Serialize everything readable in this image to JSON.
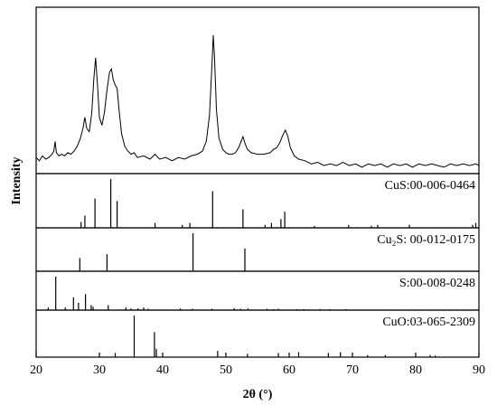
{
  "chart_data": [
    {
      "type": "line",
      "ylabel": "Intensity",
      "xlim": [
        20,
        90
      ],
      "ylim": [
        0,
        100
      ],
      "color": "#000000",
      "x": [
        20,
        20.5,
        21,
        21.5,
        22,
        22.5,
        22.8,
        23.0,
        23.2,
        23.6,
        24,
        24.5,
        25,
        25.5,
        26,
        26.5,
        27,
        27.4,
        27.7,
        28.0,
        28.4,
        28.8,
        29.1,
        29.4,
        29.7,
        30.0,
        30.4,
        30.8,
        31.2,
        31.6,
        31.9,
        32.2,
        32.5,
        32.8,
        33.1,
        33.5,
        34,
        34.5,
        35,
        35.5,
        36,
        37,
        38,
        38.8,
        39.5,
        40.5,
        41.5,
        42.5,
        43.5,
        44.5,
        45.5,
        46.3,
        46.9,
        47.4,
        47.8,
        48.0,
        48.2,
        48.5,
        48.9,
        49.5,
        50,
        50.5,
        51,
        51.5,
        52,
        52.4,
        52.7,
        53.0,
        53.4,
        54,
        55,
        56,
        57,
        57.5,
        58,
        58.5,
        59,
        59.4,
        59.8,
        60.2,
        60.8,
        61.5,
        62.5,
        63.5,
        64.5,
        65.5,
        66.5,
        67.5,
        68.5,
        69.5,
        70.5,
        71.5,
        72.5,
        73.5,
        74.5,
        75.5,
        76.5,
        77.5,
        78.5,
        79.5,
        80.5,
        81.5,
        82.5,
        83.5,
        84.5,
        85.5,
        86.5,
        87.5,
        88.5,
        89.5,
        90
      ],
      "values": [
        10,
        8,
        11,
        9,
        10,
        12,
        14,
        20,
        13,
        11,
        12,
        11,
        13,
        12,
        14,
        17,
        22,
        28,
        35,
        28,
        26,
        38,
        58,
        72,
        55,
        35,
        30,
        38,
        52,
        63,
        65,
        58,
        55,
        53,
        40,
        25,
        17,
        14,
        12,
        13,
        10,
        11,
        9,
        12,
        9,
        10,
        8,
        10,
        9,
        11,
        12,
        14,
        20,
        36,
        68,
        86,
        72,
        40,
        22,
        15,
        13,
        12,
        12,
        13,
        16,
        20,
        23,
        19,
        15,
        13,
        12,
        12,
        13,
        15,
        16,
        19,
        24,
        27,
        23,
        16,
        11,
        9,
        8,
        6,
        7,
        5,
        6,
        5,
        7,
        5,
        6,
        4,
        6,
        5,
        6,
        4,
        6,
        5,
        6,
        4,
        6,
        5,
        6,
        5,
        4,
        6,
        5,
        6,
        5,
        6,
        5
      ]
    },
    {
      "type": "stick",
      "label": "CuS:00-006-0464",
      "xlim": [
        20,
        90
      ],
      "ylim": [
        0,
        100
      ],
      "color": "#000000",
      "x": [
        27.1,
        27.7,
        29.3,
        31.8,
        32.8,
        38.8,
        43.1,
        44.3,
        47.9,
        52.7,
        56.2,
        57.2,
        58.7,
        59.3,
        64.0,
        69.4,
        73.0,
        74.0,
        79.0,
        89.0,
        89.5
      ],
      "values": [
        12,
        25,
        60,
        100,
        55,
        10,
        6,
        10,
        75,
        38,
        6,
        10,
        18,
        33,
        4,
        6,
        4,
        6,
        6,
        6,
        10
      ]
    },
    {
      "type": "stick",
      "label": "Cu₂S: 00-012-0175",
      "xlim": [
        20,
        90
      ],
      "ylim": [
        0,
        100
      ],
      "color": "#000000",
      "x": [
        26.9,
        31.2,
        44.8,
        53.0
      ],
      "values": [
        35,
        45,
        100,
        60
      ]
    },
    {
      "type": "stick",
      "label": "S:00-008-0248",
      "xlim": [
        20,
        90
      ],
      "ylim": [
        0,
        100
      ],
      "color": "#000000",
      "x": [
        21.9,
        23.1,
        24.6,
        25.9,
        26.7,
        27.8,
        28.7,
        29.0,
        31.4,
        34.2,
        35.0,
        36.1,
        37.0,
        37.7,
        42.8,
        44.7,
        47.8,
        51.3,
        52.3,
        53.5,
        56.5,
        57.6,
        58.3,
        61.2,
        62.3,
        64.9,
        66.4,
        69.0
      ],
      "values": [
        8,
        100,
        8,
        38,
        22,
        48,
        15,
        10,
        15,
        8,
        5,
        5,
        8,
        4,
        5,
        4,
        4,
        6,
        4,
        5,
        4,
        3,
        4,
        3,
        3,
        3,
        3,
        3
      ]
    },
    {
      "type": "stick",
      "label": "CuO:03-065-2309",
      "xlim": [
        20,
        90
      ],
      "ylim": [
        0,
        100
      ],
      "color": "#000000",
      "xlabel": "2θ (°)",
      "xticks": [
        20,
        30,
        40,
        50,
        60,
        70,
        80,
        90
      ],
      "x": [
        32.5,
        35.5,
        38.7,
        39.0,
        48.7,
        53.4,
        58.3,
        61.5,
        66.2,
        68.1,
        72.4,
        75.2,
        82.3,
        83.1
      ],
      "values": [
        10,
        100,
        60,
        20,
        15,
        8,
        10,
        12,
        10,
        12,
        5,
        5,
        5,
        4
      ]
    }
  ]
}
